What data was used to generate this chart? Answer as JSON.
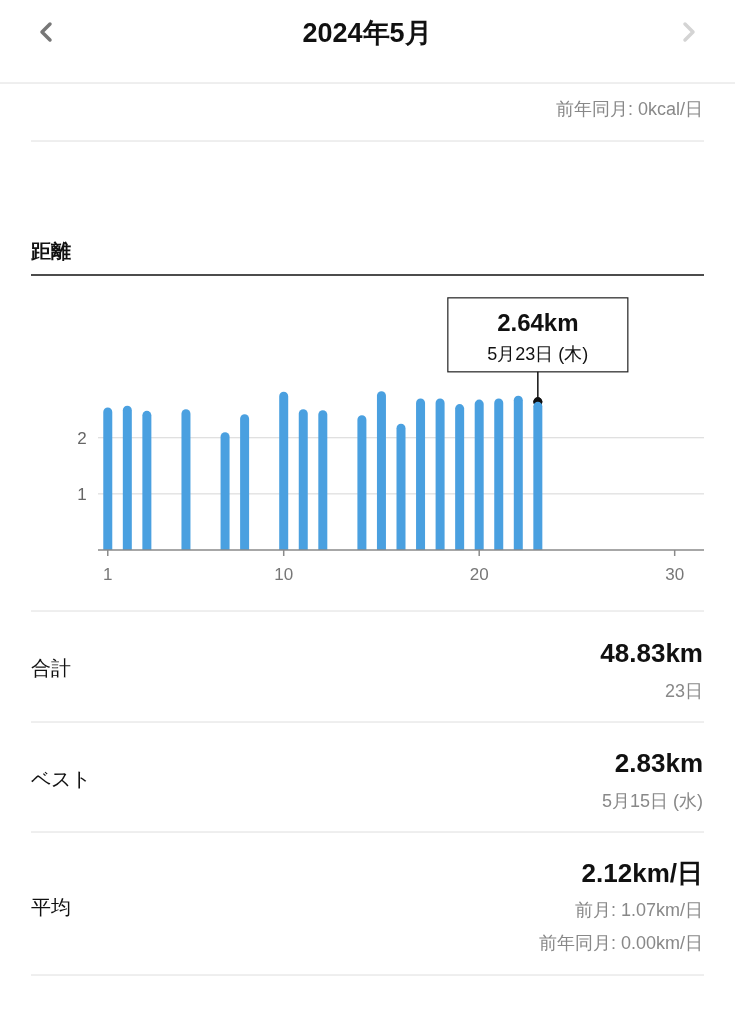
{
  "chart_data": {
    "type": "bar",
    "title": "距離",
    "x": [
      1,
      2,
      3,
      5,
      7,
      8,
      10,
      11,
      12,
      14,
      15,
      16,
      17,
      18,
      19,
      20,
      21,
      22,
      23
    ],
    "values": [
      2.54,
      2.57,
      2.48,
      2.51,
      2.1,
      2.42,
      2.82,
      2.51,
      2.49,
      2.4,
      2.83,
      2.25,
      2.7,
      2.7,
      2.6,
      2.68,
      2.7,
      2.75,
      2.64
    ],
    "color": "#4aa0e0",
    "xlim": [
      0.5,
      31.5
    ],
    "xticks": [
      1,
      10,
      20,
      30
    ],
    "ylim": [
      0,
      4.9
    ],
    "yticks": [
      1,
      2
    ],
    "grid": "y",
    "annotations": [
      "2024年5月",
      "前年同月: 0kcal/日",
      "合計",
      "48.83km",
      "23日",
      "ベスト",
      "2.83km",
      "5月15日 (水)",
      "平均",
      "2.12km/日",
      "前月: 1.07km/日",
      "前年同月: 0.00km/日",
      {
        "text": "2.64km",
        "x": 23,
        "y": 2.64
      },
      {
        "text": "5月23日 (木)",
        "x": 23,
        "y": 2.64
      }
    ]
  }
}
